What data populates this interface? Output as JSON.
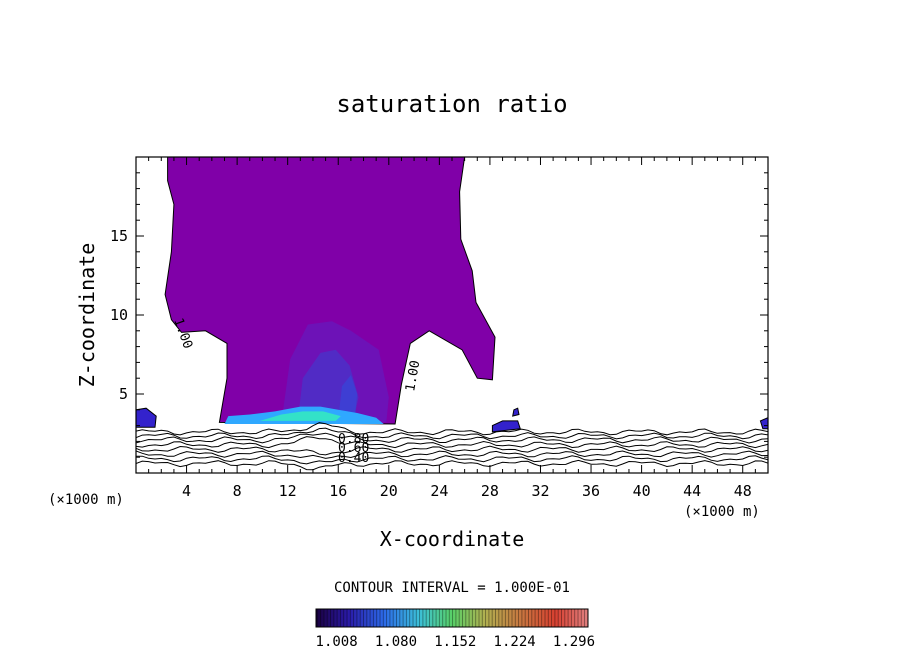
{
  "chart_data": {
    "type": "filled-contour",
    "title": "saturation ratio",
    "xlabel": "X-coordinate",
    "ylabel": "Z-coordinate",
    "x_unit_label": "(×1000 m)",
    "x_unit_label_right": "(×1000 m)",
    "xlim": [
      0,
      50
    ],
    "ylim": [
      0,
      20
    ],
    "x_ticks": [
      4,
      8,
      12,
      16,
      20,
      24,
      28,
      32,
      36,
      40,
      44,
      48
    ],
    "x_tick_labels": [
      "4",
      "8",
      "12",
      "16",
      "20",
      "24",
      "28",
      "32",
      "36",
      "40",
      "44",
      "48"
    ],
    "y_ticks": [
      5,
      10,
      15
    ],
    "y_tick_labels": [
      "5",
      "10",
      "15"
    ],
    "contour_interval_label": "CONTOUR INTERVAL = 1.000E-01",
    "contour_labels": [
      "1.00",
      "1.00",
      "0.80",
      "0.60",
      "0.40"
    ],
    "colorbar": {
      "ticks": [
        "1.008",
        "1.080",
        "1.152",
        "1.224",
        "1.296"
      ],
      "range": [
        1.0,
        1.33
      ]
    },
    "supersaturated_region": [
      [
        1.1,
        20
      ],
      [
        2.5,
        20
      ],
      [
        2.5,
        18.5
      ],
      [
        3.0,
        17.0
      ],
      [
        2.8,
        14.0
      ],
      [
        2.3,
        11.3
      ],
      [
        2.8,
        9.7
      ],
      [
        3.6,
        8.9
      ],
      [
        5.5,
        9.0
      ],
      [
        7.2,
        8.2
      ],
      [
        7.2,
        6.0
      ],
      [
        6.6,
        3.2
      ],
      [
        20.5,
        3.1
      ],
      [
        21.0,
        5.6
      ],
      [
        21.7,
        8.2
      ],
      [
        23.2,
        9.0
      ],
      [
        25.8,
        7.8
      ],
      [
        27.0,
        6.0
      ],
      [
        28.2,
        5.9
      ],
      [
        28.4,
        8.6
      ],
      [
        26.9,
        10.8
      ],
      [
        26.6,
        12.8
      ],
      [
        25.7,
        14.8
      ],
      [
        25.6,
        17.8
      ],
      [
        26.0,
        20
      ]
    ],
    "background_contour_levels_y": [
      0.6,
      0.9,
      1.2,
      1.5,
      1.8,
      2.1,
      2.35,
      2.6
    ],
    "colors": {
      "supersaturated_fill": "#8000a8",
      "inner_fill": "#6a14b8",
      "core_fill": "#4c30c8",
      "base_band": "#2fa8ff",
      "base_highlight": "#33e2c8",
      "small_blobs": "#3322cc",
      "line": "#000000"
    }
  }
}
